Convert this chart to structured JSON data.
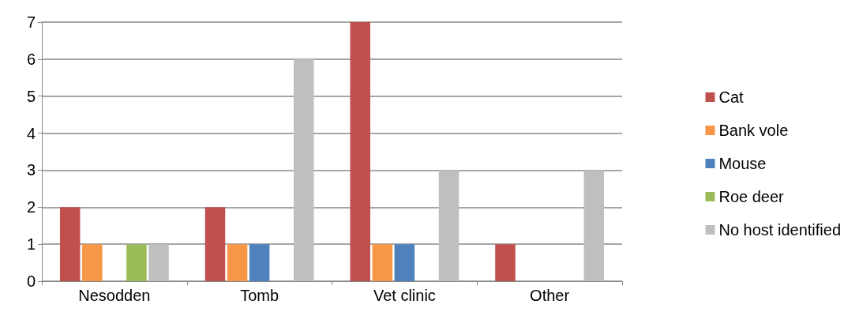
{
  "chart_data": {
    "type": "bar",
    "categories": [
      "Nesodden",
      "Tomb",
      "Vet clinic",
      "Other"
    ],
    "series": [
      {
        "name": "Cat",
        "color": "#c0504d",
        "values": [
          2,
          2,
          7,
          1
        ]
      },
      {
        "name": "Bank vole",
        "color": "#f79646",
        "values": [
          1,
          1,
          1,
          0
        ]
      },
      {
        "name": "Mouse",
        "color": "#4f81bd",
        "values": [
          0,
          1,
          1,
          0
        ]
      },
      {
        "name": "Roe deer",
        "color": "#9bbb59",
        "values": [
          1,
          0,
          0,
          0
        ]
      },
      {
        "name": "No host identified",
        "color": "#bfbfbf",
        "values": [
          1,
          6,
          3,
          3
        ]
      }
    ],
    "ylim": [
      0,
      7
    ],
    "yticks": [
      0,
      1,
      2,
      3,
      4,
      5,
      6,
      7
    ],
    "grid": "y",
    "legend": "right"
  }
}
